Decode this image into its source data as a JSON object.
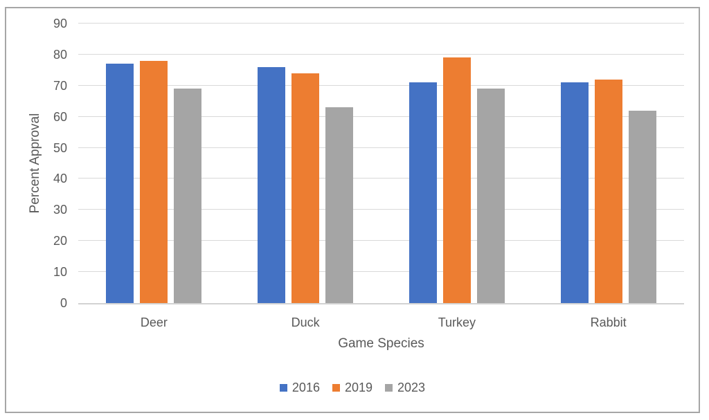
{
  "chart": {
    "frame_border_color": "#a6a6a6",
    "background": "#ffffff"
  },
  "chart_data": {
    "type": "bar",
    "title": "",
    "xlabel": "Game Species",
    "ylabel": "Percent Approval",
    "categories": [
      "Deer",
      "Duck",
      "Turkey",
      "Rabbit"
    ],
    "series": [
      {
        "name": "2016",
        "color": "#4472C4",
        "values": [
          77,
          76,
          71,
          71
        ]
      },
      {
        "name": "2019",
        "color": "#ED7D31",
        "values": [
          78,
          74,
          79,
          72
        ]
      },
      {
        "name": "2023",
        "color": "#A5A5A5",
        "values": [
          69,
          63,
          69,
          62
        ]
      }
    ],
    "ylim": [
      0,
      90
    ],
    "yticks": [
      0,
      10,
      20,
      30,
      40,
      50,
      60,
      70,
      80,
      90
    ],
    "grid": true,
    "gridline_color": "#d9d9d9",
    "axis_line_color": "#d2d2d2",
    "text_color": "#595959",
    "legend_position": "bottom"
  }
}
